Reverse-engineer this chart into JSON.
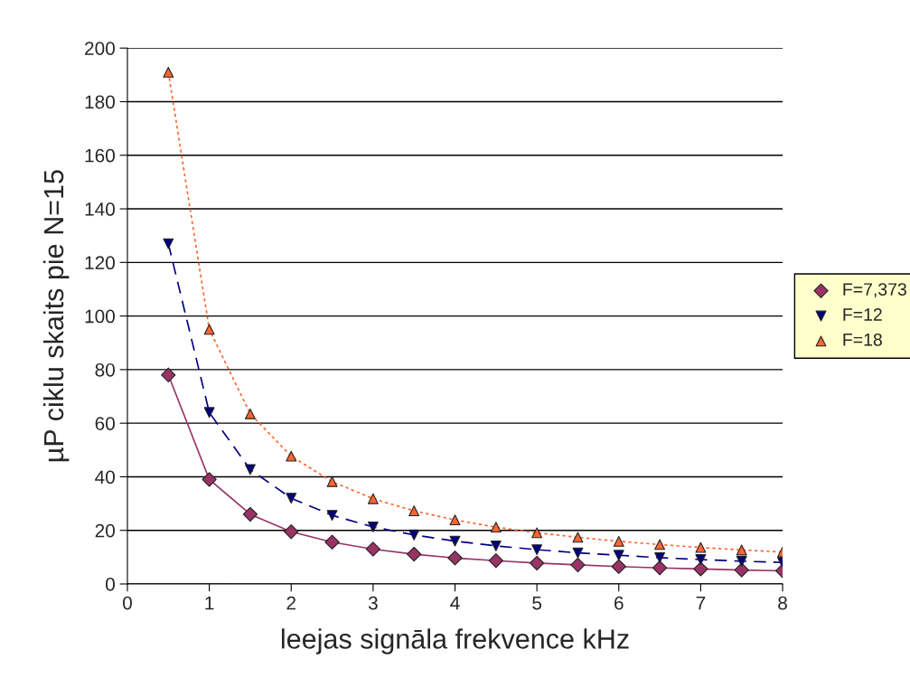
{
  "chart_data": {
    "type": "line",
    "xlabel": "leejas signāla frekvence kHz",
    "ylabel": "µP ciklu skaits pie N=15",
    "x": [
      0.5,
      1,
      1.5,
      2,
      2.5,
      3,
      3.5,
      4,
      4.5,
      5,
      5.5,
      6,
      6.5,
      7,
      7.5,
      8
    ],
    "series": [
      {
        "name": "F=7,373",
        "color": "#993366",
        "marker": "diamond",
        "line_style": "solid",
        "values": [
          78,
          39,
          26,
          19.5,
          15.6,
          13,
          11.1,
          9.7,
          8.7,
          7.8,
          7.1,
          6.5,
          6,
          5.6,
          5.2,
          4.9
        ]
      },
      {
        "name": "F=12",
        "color": "#000080",
        "marker": "triangle_down",
        "line_style": "dashed",
        "values": [
          127,
          64,
          42.7,
          32,
          25.6,
          21.3,
          18.3,
          16,
          14.2,
          12.8,
          11.6,
          10.7,
          9.8,
          9.1,
          8.5,
          8
        ]
      },
      {
        "name": "F=18",
        "color": "#ff6633",
        "marker": "triangle",
        "line_style": "dotted",
        "values": [
          191,
          95,
          63.5,
          47.7,
          38.2,
          31.8,
          27.3,
          23.9,
          21.2,
          19.1,
          17.4,
          15.9,
          14.7,
          13.6,
          12.7,
          11.9
        ]
      }
    ],
    "xlim": [
      0,
      8
    ],
    "xticks": [
      0,
      1,
      2,
      3,
      4,
      5,
      6,
      7,
      8
    ],
    "ylim": [
      0,
      200
    ],
    "yticks": [
      0,
      20,
      40,
      60,
      80,
      100,
      120,
      140,
      160,
      180,
      200
    ],
    "grid": "y",
    "legend": "right"
  }
}
